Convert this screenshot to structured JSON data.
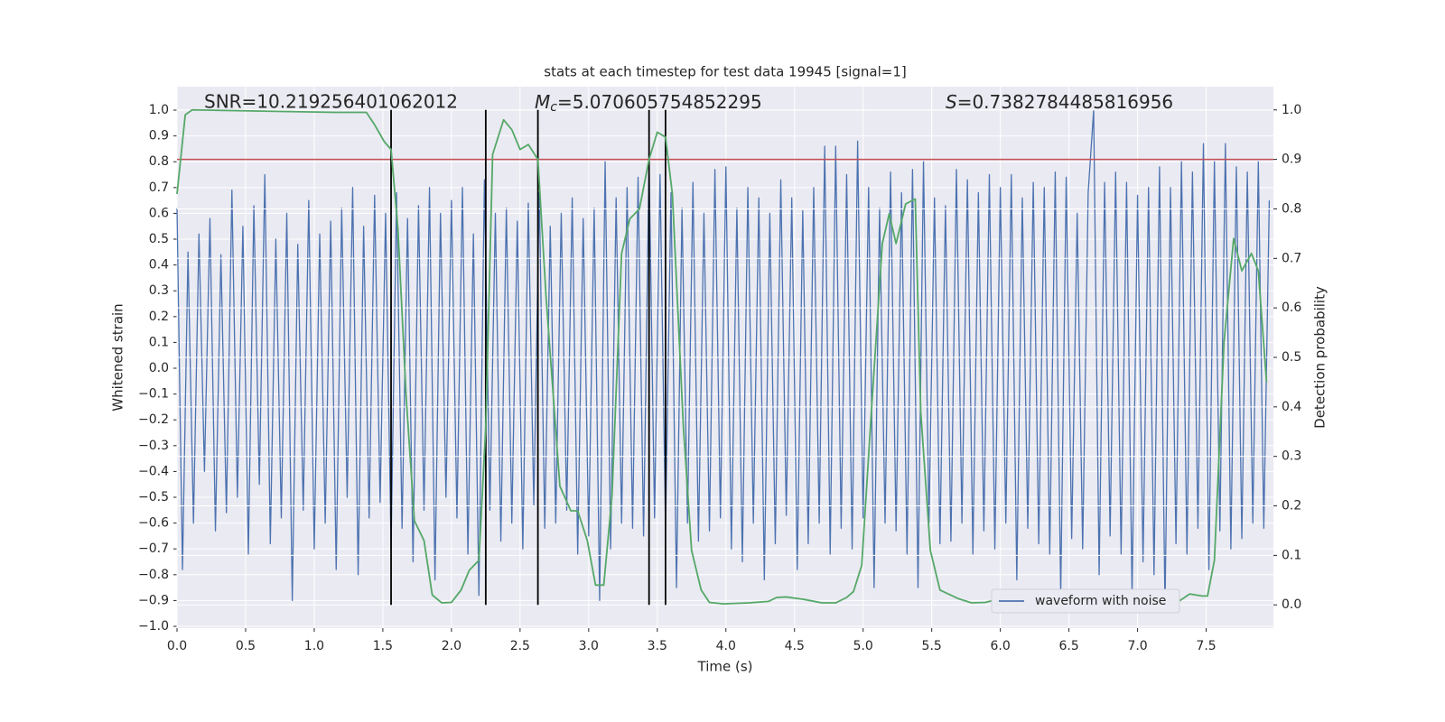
{
  "chart_data": {
    "type": "line",
    "title": "stats at each timestep for test data 19945 [signal=1]",
    "xlabel": "Time (s)",
    "ylabel": "Whitened strain",
    "y2label": "Detection probability",
    "annotations": {
      "snr": "SNR=10.219256401062012",
      "mc": {
        "symbol": "M",
        "subscript": "c",
        "text": "=5.070605754852295"
      },
      "s": {
        "symbol": "S",
        "text": "=0.7382784485816956"
      }
    },
    "xlim": [
      0,
      7.99
    ],
    "ylim": [
      -1.007,
      1.091
    ],
    "y2lim": [
      -0.047,
      1.047
    ],
    "xticks": [
      {
        "value": 0,
        "label": "0.0"
      },
      {
        "value": 0.5,
        "label": "0.5"
      },
      {
        "value": 1,
        "label": "1.0"
      },
      {
        "value": 1.5,
        "label": "1.5"
      },
      {
        "value": 2,
        "label": "2.0"
      },
      {
        "value": 2.5,
        "label": "2.5"
      },
      {
        "value": 3,
        "label": "3.0"
      },
      {
        "value": 3.5,
        "label": "3.5"
      },
      {
        "value": 4,
        "label": "4.0"
      },
      {
        "value": 4.5,
        "label": "4.5"
      },
      {
        "value": 5,
        "label": "5.0"
      },
      {
        "value": 5.5,
        "label": "5.5"
      },
      {
        "value": 6,
        "label": "6.0"
      },
      {
        "value": 6.5,
        "label": "6.5"
      },
      {
        "value": 7,
        "label": "7.0"
      },
      {
        "value": 7.5,
        "label": "7.5"
      }
    ],
    "yticks": [
      {
        "value": -1,
        "label": "−1.0"
      },
      {
        "value": -0.9,
        "label": "−0.9"
      },
      {
        "value": -0.8,
        "label": "−0.8"
      },
      {
        "value": -0.7,
        "label": "−0.7"
      },
      {
        "value": -0.6,
        "label": "−0.6"
      },
      {
        "value": -0.5,
        "label": "−0.5"
      },
      {
        "value": -0.4,
        "label": "−0.4"
      },
      {
        "value": -0.3,
        "label": "−0.3"
      },
      {
        "value": -0.2,
        "label": "−0.2"
      },
      {
        "value": -0.1,
        "label": "−0.1"
      },
      {
        "value": 0,
        "label": "0.0"
      },
      {
        "value": 0.1,
        "label": "0.1"
      },
      {
        "value": 0.2,
        "label": "0.2"
      },
      {
        "value": 0.3,
        "label": "0.3"
      },
      {
        "value": 0.4,
        "label": "0.4"
      },
      {
        "value": 0.5,
        "label": "0.5"
      },
      {
        "value": 0.6,
        "label": "0.6"
      },
      {
        "value": 0.7,
        "label": "0.7"
      },
      {
        "value": 0.8,
        "label": "0.8"
      },
      {
        "value": 0.9,
        "label": "0.9"
      },
      {
        "value": 1,
        "label": "1.0"
      }
    ],
    "y2ticks": [
      {
        "value": 0,
        "label": "0.0"
      },
      {
        "value": 0.1,
        "label": "0.1"
      },
      {
        "value": 0.2,
        "label": "0.2"
      },
      {
        "value": 0.3,
        "label": "0.3"
      },
      {
        "value": 0.4,
        "label": "0.4"
      },
      {
        "value": 0.5,
        "label": "0.5"
      },
      {
        "value": 0.6,
        "label": "0.6"
      },
      {
        "value": 0.7,
        "label": "0.7"
      },
      {
        "value": 0.8,
        "label": "0.8"
      },
      {
        "value": 0.9,
        "label": "0.9"
      },
      {
        "value": 1,
        "label": "1.0"
      }
    ],
    "grid": true,
    "legend": "lower right",
    "series": [
      {
        "name": "waveform with noise",
        "color": "#4c72b0",
        "x": [
          0,
          0.04,
          0.08,
          0.12,
          0.16,
          0.2,
          0.24,
          0.28,
          0.32,
          0.36,
          0.4,
          0.44,
          0.48,
          0.52,
          0.56,
          0.6,
          0.64,
          0.68,
          0.72,
          0.76,
          0.8,
          0.84,
          0.88,
          0.92,
          0.96,
          1,
          1.04,
          1.08,
          1.12,
          1.16,
          1.2,
          1.24,
          1.28,
          1.32,
          1.36,
          1.4,
          1.44,
          1.48,
          1.52,
          1.56,
          1.6,
          1.64,
          1.68,
          1.72,
          1.76,
          1.8,
          1.84,
          1.88,
          1.92,
          1.96,
          2,
          2.04,
          2.08,
          2.12,
          2.16,
          2.2,
          2.24,
          2.28,
          2.32,
          2.36,
          2.4,
          2.44,
          2.48,
          2.52,
          2.56,
          2.6,
          2.64,
          2.68,
          2.72,
          2.76,
          2.8,
          2.84,
          2.88,
          2.92,
          2.96,
          3,
          3.04,
          3.08,
          3.12,
          3.16,
          3.2,
          3.24,
          3.28,
          3.32,
          3.36,
          3.4,
          3.44,
          3.48,
          3.52,
          3.56,
          3.6,
          3.64,
          3.68,
          3.72,
          3.76,
          3.8,
          3.84,
          3.88,
          3.92,
          3.96,
          4,
          4.04,
          4.08,
          4.12,
          4.16,
          4.2,
          4.24,
          4.28,
          4.32,
          4.36,
          4.4,
          4.44,
          4.48,
          4.52,
          4.56,
          4.6,
          4.64,
          4.68,
          4.72,
          4.76,
          4.8,
          4.84,
          4.88,
          4.92,
          4.96,
          5,
          5.04,
          5.08,
          5.12,
          5.16,
          5.2,
          5.24,
          5.28,
          5.32,
          5.36,
          5.4,
          5.44,
          5.48,
          5.52,
          5.56,
          5.6,
          5.64,
          5.68,
          5.72,
          5.76,
          5.8,
          5.84,
          5.88,
          5.92,
          5.96,
          6,
          6.04,
          6.08,
          6.12,
          6.16,
          6.2,
          6.24,
          6.28,
          6.32,
          6.36,
          6.4,
          6.44,
          6.48,
          6.52,
          6.56,
          6.6,
          6.64,
          6.68,
          6.72,
          6.76,
          6.8,
          6.84,
          6.88,
          6.92,
          6.96,
          7,
          7.04,
          7.08,
          7.12,
          7.16,
          7.2,
          7.24,
          7.28,
          7.32,
          7.36,
          7.4,
          7.44,
          7.48,
          7.52,
          7.56,
          7.6,
          7.64,
          7.68,
          7.72,
          7.76,
          7.8,
          7.84,
          7.88,
          7.92,
          7.96
        ],
        "values": [
          0.62,
          -0.78,
          0.45,
          -0.6,
          0.52,
          -0.4,
          0.58,
          -0.63,
          0.44,
          -0.56,
          0.69,
          -0.5,
          0.55,
          -0.72,
          0.63,
          -0.45,
          0.75,
          -0.68,
          0.5,
          -0.58,
          0.6,
          -0.9,
          0.48,
          -0.55,
          0.65,
          -0.7,
          0.52,
          -0.6,
          0.57,
          -0.78,
          0.62,
          -0.5,
          0.7,
          -0.8,
          0.55,
          -0.58,
          0.67,
          -0.52,
          0.6,
          -0.7,
          0.68,
          -0.62,
          0.58,
          -0.75,
          0.63,
          -0.55,
          0.7,
          -0.82,
          0.6,
          -0.5,
          0.65,
          -0.58,
          0.7,
          -0.72,
          0.52,
          -0.88,
          0.73,
          -0.55,
          0.6,
          -0.67,
          0.62,
          -0.6,
          0.57,
          -0.7,
          0.64,
          -0.53,
          0.68,
          -0.62,
          0.55,
          -0.6,
          0.6,
          -0.55,
          0.66,
          -0.72,
          0.58,
          -0.65,
          0.62,
          -0.9,
          0.8,
          -0.7,
          0.66,
          -0.6,
          0.7,
          -0.62,
          0.74,
          -0.65,
          0.8,
          -0.58,
          0.75,
          -0.62,
          0.68,
          -0.85,
          0.62,
          -0.6,
          0.72,
          -0.67,
          0.6,
          -0.63,
          0.77,
          -0.58,
          0.78,
          -0.7,
          0.62,
          -0.75,
          0.7,
          -0.6,
          0.66,
          -0.82,
          0.6,
          -0.68,
          0.73,
          -0.57,
          0.66,
          -0.78,
          0.61,
          -0.68,
          0.7,
          -0.6,
          0.86,
          -0.72,
          0.86,
          -0.62,
          0.75,
          -0.7,
          0.88,
          -0.58,
          0.7,
          -0.85,
          0.62,
          -0.6,
          0.76,
          -0.63,
          0.68,
          -0.72,
          0.77,
          -0.85,
          0.8,
          -0.6,
          0.66,
          -0.68,
          0.63,
          -0.67,
          0.77,
          -0.6,
          0.73,
          -0.72,
          0.68,
          -0.63,
          0.75,
          -0.7,
          0.7,
          -0.6,
          0.75,
          -0.82,
          0.66,
          -0.62,
          0.72,
          -0.68,
          0.7,
          -0.72,
          0.76,
          -0.88,
          0.74,
          -0.66,
          0.6,
          -0.7,
          0.68,
          1.0,
          -0.8,
          0.72,
          -0.65,
          0.76,
          -0.72,
          0.72,
          -0.88,
          0.67,
          -0.75,
          0.7,
          -0.8,
          0.78,
          -0.93,
          0.7,
          -0.68,
          0.8,
          -0.72,
          0.76,
          -0.62,
          0.87,
          -0.78,
          0.8,
          -0.63,
          0.87,
          -0.7,
          0.78,
          -0.66,
          0.76,
          -0.6,
          0.8,
          -0.62,
          0.65
        ]
      },
      {
        "color": "#55a868",
        "axis": "y2",
        "x": [
          0,
          0.06,
          0.11,
          1.15,
          1.38,
          1.44,
          1.51,
          1.56,
          1.61,
          1.67,
          1.73,
          1.8,
          1.86,
          1.93,
          2,
          2.07,
          2.13,
          2.2,
          2.25,
          2.3,
          2.38,
          2.44,
          2.5,
          2.56,
          2.63,
          2.69,
          2.79,
          2.87,
          2.92,
          2.99,
          3.05,
          3.11,
          3.17,
          3.24,
          3.3,
          3.37,
          3.44,
          3.5,
          3.56,
          3.61,
          3.69,
          3.75,
          3.82,
          3.88,
          3.98,
          4.17,
          4.31,
          4.37,
          4.44,
          4.57,
          4.7,
          4.8,
          4.88,
          4.93,
          4.99,
          5.06,
          5.14,
          5.19,
          5.24,
          5.31,
          5.38,
          5.42,
          5.49,
          5.56,
          5.69,
          5.79,
          5.89,
          5.95,
          6.05,
          6.48,
          6.77,
          6.87,
          6.97,
          7.14,
          7.2,
          7.3,
          7.38,
          7.47,
          7.51,
          7.56,
          7.63,
          7.7,
          7.76,
          7.83,
          7.88,
          7.94
        ],
        "values": [
          0.83,
          0.99,
          1.0,
          0.995,
          0.995,
          0.97,
          0.936,
          0.92,
          0.76,
          0.42,
          0.17,
          0.13,
          0.02,
          0.004,
          0.005,
          0.03,
          0.07,
          0.09,
          0.36,
          0.91,
          0.98,
          0.96,
          0.92,
          0.93,
          0.9,
          0.62,
          0.24,
          0.19,
          0.19,
          0.13,
          0.04,
          0.04,
          0.22,
          0.71,
          0.78,
          0.8,
          0.9,
          0.955,
          0.945,
          0.83,
          0.36,
          0.11,
          0.03,
          0.005,
          0.002,
          0.004,
          0.007,
          0.015,
          0.016,
          0.011,
          0.004,
          0.004,
          0.015,
          0.027,
          0.08,
          0.39,
          0.73,
          0.79,
          0.73,
          0.81,
          0.82,
          0.39,
          0.11,
          0.03,
          0.013,
          0.004,
          0.005,
          0.009,
          0.004,
          0.002,
          0.004,
          0.007,
          0.004,
          0.011,
          0.004,
          0.007,
          0.022,
          0.018,
          0.018,
          0.09,
          0.53,
          0.74,
          0.675,
          0.71,
          0.675,
          0.45
        ]
      }
    ],
    "hlines": [
      {
        "value": 0.9,
        "axis": "y2",
        "color": "#c44e52"
      }
    ],
    "vlines": {
      "x": [
        1.56,
        2.25,
        2.63,
        3.44,
        3.56
      ],
      "ymin": 0,
      "ymax": 1,
      "axis": "y2",
      "color": "#000000"
    }
  }
}
